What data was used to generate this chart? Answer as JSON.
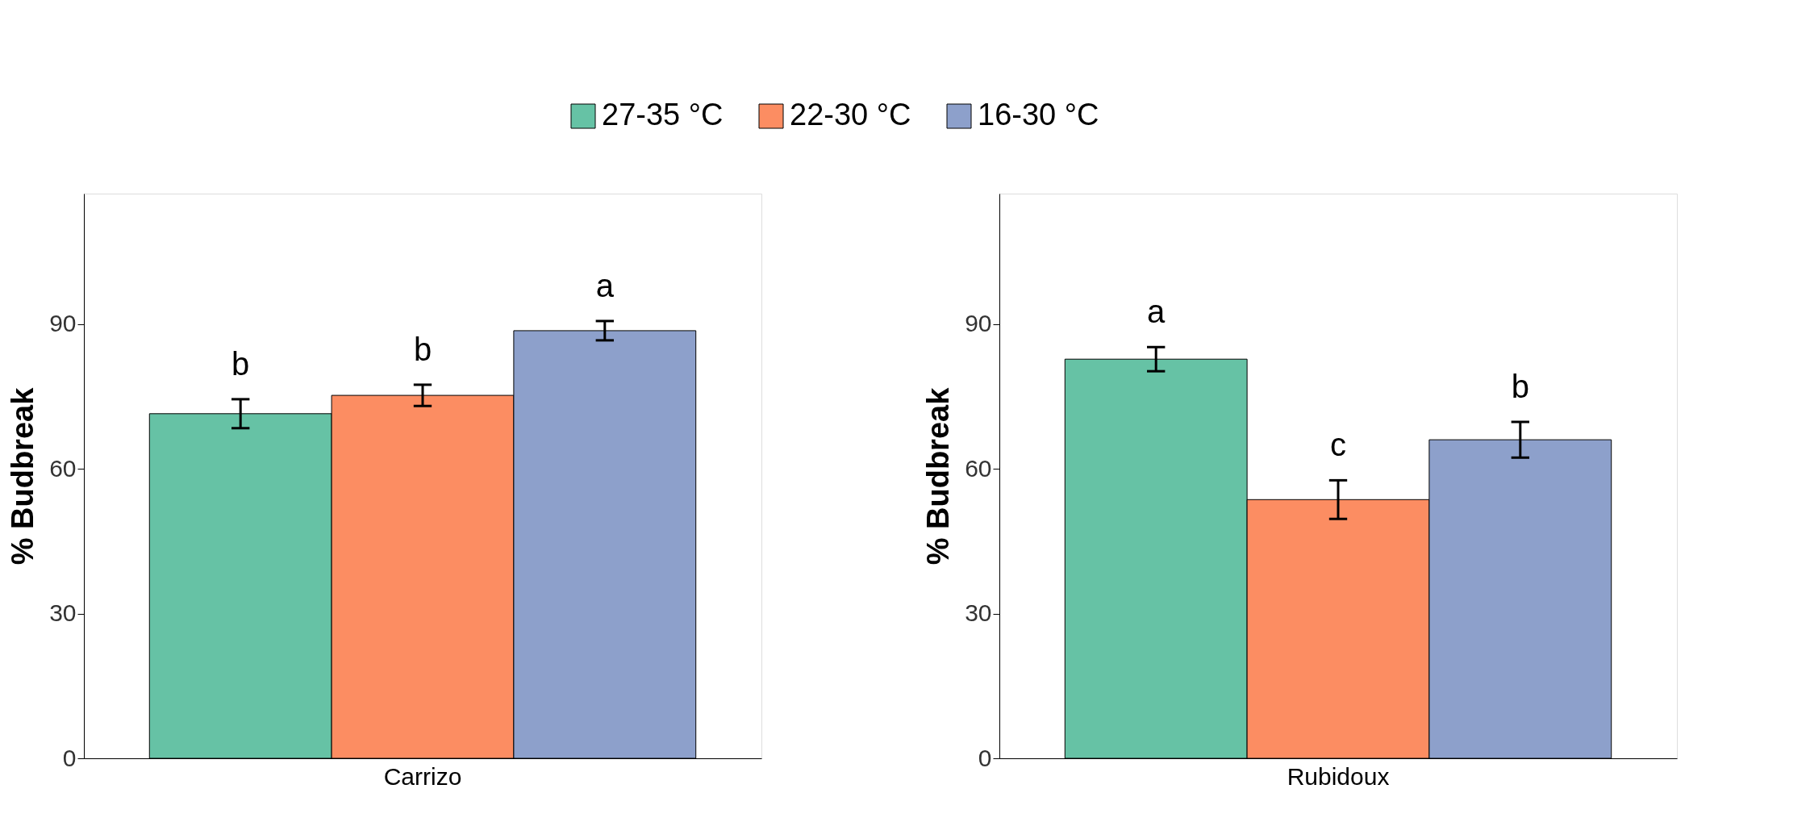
{
  "chart_data": [
    {
      "type": "bar",
      "categories": [
        "Carrizo"
      ],
      "ylabel": "% Budbreak",
      "ylim": [
        0,
        117
      ],
      "yticks": [
        0,
        30,
        60,
        90
      ],
      "grid": false,
      "legend": "top",
      "series": [
        {
          "name": "27-35 °C",
          "color": "#66c2a5",
          "values": [
            71.4
          ],
          "errors": [
            3
          ]
        },
        {
          "name": "22-30 °C",
          "color": "#fc8d62",
          "values": [
            75.2
          ],
          "errors": [
            2.2
          ]
        },
        {
          "name": "16-30 °C",
          "color": "#8da0cb",
          "values": [
            88.6
          ],
          "errors": [
            2
          ]
        }
      ],
      "annotations": [
        "b",
        "b",
        "a"
      ]
    },
    {
      "type": "bar",
      "categories": [
        "Rubidoux"
      ],
      "ylabel": "% Budbreak",
      "ylim": [
        0,
        117
      ],
      "yticks": [
        0,
        30,
        60,
        90
      ],
      "grid": false,
      "legend": false,
      "series": [
        {
          "name": "27-35 °C",
          "color": "#66c2a5",
          "values": [
            82.7
          ],
          "errors": [
            2.5
          ]
        },
        {
          "name": "22-30 °C",
          "color": "#fc8d62",
          "values": [
            53.6
          ],
          "errors": [
            4
          ]
        },
        {
          "name": "16-30 °C",
          "color": "#8da0cb",
          "values": [
            66
          ],
          "errors": [
            3.7
          ]
        }
      ],
      "annotations": [
        "a",
        "c",
        "b"
      ]
    }
  ]
}
